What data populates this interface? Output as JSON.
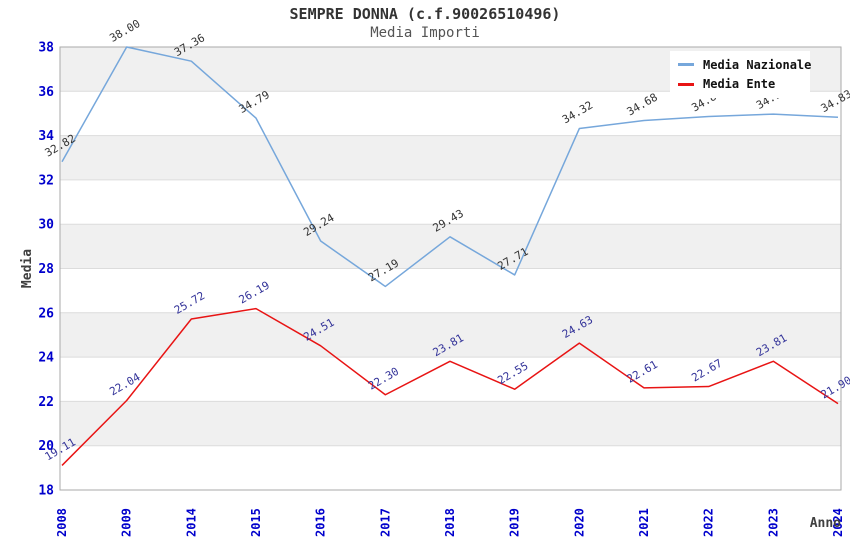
{
  "chart_data": {
    "type": "line",
    "title": "SEMPRE DONNA (c.f.90026510496)",
    "subtitle": "Media Importi",
    "xlabel": "Anno",
    "ylabel": "Media",
    "categories": [
      "2008",
      "2009",
      "2014",
      "2015",
      "2016",
      "2017",
      "2018",
      "2019",
      "2020",
      "2021",
      "2022",
      "2023",
      "2024"
    ],
    "series": [
      {
        "name": "Media Nazionale",
        "color": "#76A7DB",
        "label_color": "#333333",
        "values": [
          32.82,
          38.0,
          37.36,
          34.79,
          29.24,
          27.19,
          29.43,
          27.71,
          34.32,
          34.68,
          34.86,
          34.97,
          34.83
        ]
      },
      {
        "name": "Media Ente",
        "color": "#E81414",
        "label_color": "#333399",
        "values": [
          19.11,
          22.04,
          25.72,
          26.19,
          24.51,
          22.3,
          23.81,
          22.55,
          24.63,
          22.61,
          22.67,
          23.81,
          21.9
        ]
      }
    ],
    "ylim": [
      18,
      38
    ],
    "ytick_step": 2,
    "yticks": [
      "18",
      "20",
      "22",
      "24",
      "26",
      "28",
      "30",
      "32",
      "34",
      "36",
      "38"
    ],
    "grid": "horizontal-with-alternating-bands",
    "legend_position": "top-right",
    "colors": {
      "tick_label": "#0000CC",
      "axis_title": "#404040",
      "band_fill": "#F0F0F0",
      "gridline": "#DCDCDC",
      "plot_border": "#AAAAAA",
      "title_text": "#333333",
      "subtitle_text": "#555555"
    }
  }
}
